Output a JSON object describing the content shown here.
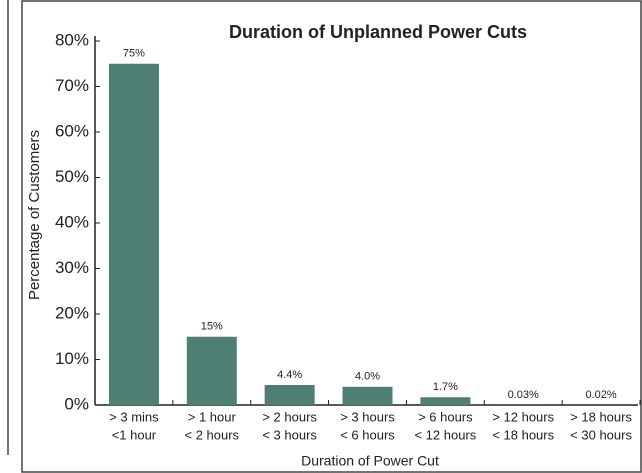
{
  "chart_data": {
    "type": "bar",
    "title": "Duration of Unplanned Power Cuts",
    "x_label": "Duration of Power Cut",
    "y_label": "Percentage of Customers",
    "categories": [
      [
        "> 3 mins",
        "<1 hour"
      ],
      [
        "> 1 hour",
        "< 2 hours"
      ],
      [
        "> 2 hours",
        "< 3 hours"
      ],
      [
        "> 3 hours",
        "< 6 hours"
      ],
      [
        "> 6 hours",
        "< 12 hours"
      ],
      [
        "> 12 hours",
        "< 18 hours"
      ],
      [
        "> 18 hours",
        "< 30 hours"
      ]
    ],
    "values": [
      75,
      15,
      4.4,
      4.0,
      1.7,
      0.03,
      0.02
    ],
    "value_labels": [
      "75%",
      "15%",
      "4.4%",
      "4.0%",
      "1.7%",
      "0.03%",
      "0.02%"
    ],
    "color": "#4f7f74",
    "ylim": [
      0,
      80
    ],
    "yticks": [
      {
        "value": 0,
        "label": "0%"
      },
      {
        "value": 10,
        "label": "10%"
      },
      {
        "value": 20,
        "label": "20%"
      },
      {
        "value": 30,
        "label": "30%"
      },
      {
        "value": 40,
        "label": "40%"
      },
      {
        "value": 50,
        "label": "50%"
      },
      {
        "value": 60,
        "label": "60%"
      },
      {
        "value": 70,
        "label": "70%"
      },
      {
        "value": 80,
        "label": "80%"
      }
    ],
    "grid": false
  }
}
